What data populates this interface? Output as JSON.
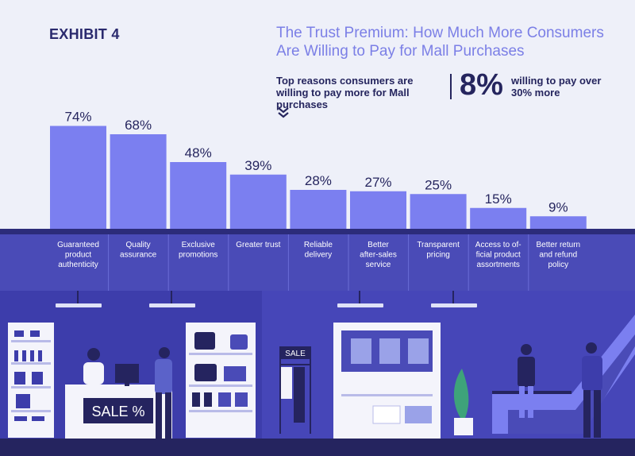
{
  "exhibit_label": "EXHIBIT 4",
  "title": "The Trust Premium: How Much More Consumers Are Willing to Pay for Mall Purchases",
  "subtitle": "Top reasons consumers are willing to pay more for Mall purchases",
  "highlight": {
    "value": "8%",
    "note": "willing to pay over 30% more"
  },
  "colors": {
    "bar": "#7b7ff0",
    "band": "#4a4bb7",
    "band_dark": "#2c2c7a",
    "text_dark": "#25255e",
    "title": "#7b7fe6",
    "scene_bg": "#4646b8",
    "scene_dark": "#25245f"
  },
  "chart_data": {
    "type": "bar",
    "categories": [
      "Guaranteed product authenticity",
      "Quality assurance",
      "Exclusive promotions",
      "Greater trust",
      "Reliable delivery",
      "Better after-sales service",
      "Transparent pricing",
      "Access to of-ficial product assortments",
      "Better return and refund policy"
    ],
    "category_lines": [
      [
        "Guaranteed",
        "product",
        "authenticity"
      ],
      [
        "Quality",
        "assurance"
      ],
      [
        "Exclusive",
        "promotions"
      ],
      [
        "Greater trust"
      ],
      [
        "Reliable",
        "delivery"
      ],
      [
        "Better",
        "after-sales",
        "service"
      ],
      [
        "Transparent",
        "pricing"
      ],
      [
        "Access to of-",
        "ficial product",
        "assortments"
      ],
      [
        "Better return",
        "and refund",
        "policy"
      ]
    ],
    "values": [
      74,
      68,
      48,
      39,
      28,
      27,
      25,
      15,
      9
    ],
    "value_labels": [
      "74%",
      "68%",
      "48%",
      "39%",
      "28%",
      "27%",
      "25%",
      "15%",
      "9%"
    ],
    "ylim": [
      0,
      100
    ],
    "grid": false,
    "legend": "none"
  },
  "scene": {
    "sale_sign": "SALE",
    "sale_counter": "SALE  %"
  }
}
